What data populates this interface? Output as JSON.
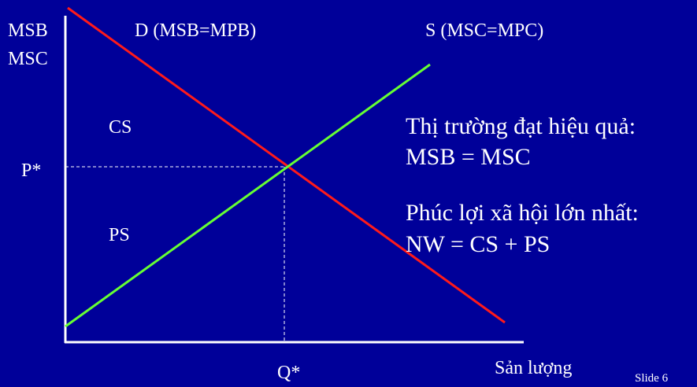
{
  "axes": {
    "y_label_line1": "MSB",
    "y_label_line2": "MSC",
    "x_label": "Sản lượng"
  },
  "curves": {
    "demand_label": "D (MSB=MPB)",
    "supply_label": "S (MSC=MPC)"
  },
  "markers": {
    "price": "P*",
    "quantity": "Q*"
  },
  "areas": {
    "consumer_surplus": "CS",
    "producer_surplus": "PS"
  },
  "notes": {
    "line1": "Thị trường đạt hiệu quả:",
    "line2": "MSB = MSC",
    "line3": "Phúc lợi xã hội lớn nhất:",
    "line4": "NW = CS + PS"
  },
  "footer": {
    "slide_label": "Slide 6"
  },
  "colors": {
    "background": "#000099",
    "text": "#ffffff",
    "demand": "#ff1a1a",
    "supply": "#66ff33",
    "axis": "#ffffff"
  }
}
